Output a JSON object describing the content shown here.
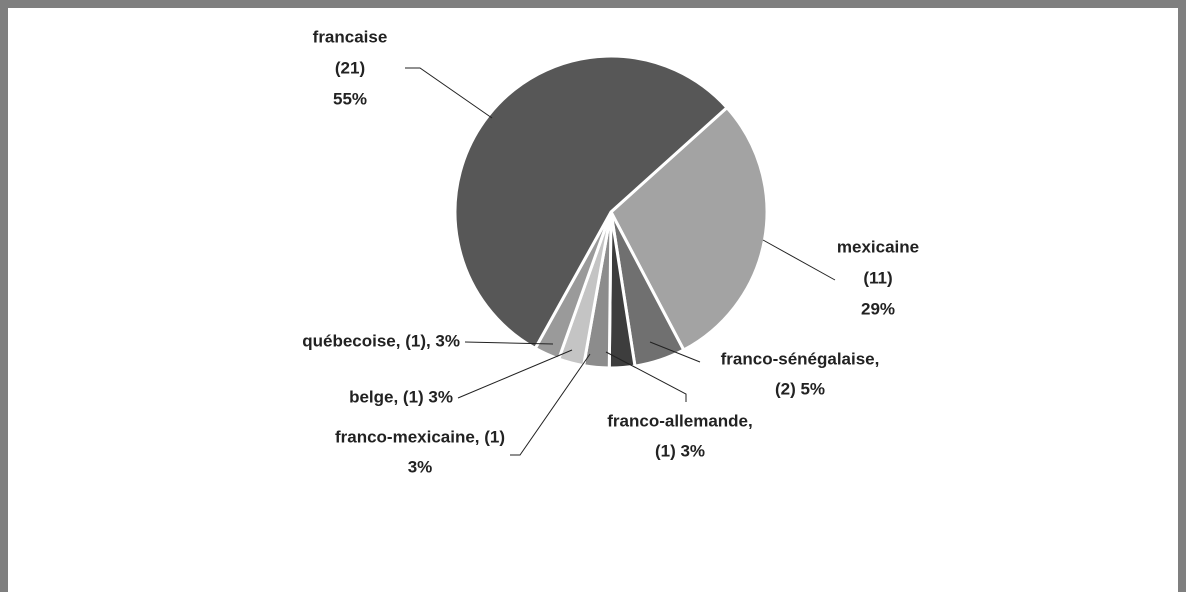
{
  "chart_data": {
    "type": "pie",
    "values": [
      11,
      2,
      1,
      1,
      1,
      1,
      21
    ],
    "value_labels": [
      [
        "mexicaine",
        "(11)",
        "29%"
      ],
      [
        "franco-sénégalaise,",
        "(2) 5%"
      ],
      [
        "franco-allemande,",
        "(1) 3%"
      ],
      [
        "franco-mexicaine, (1)",
        "3%"
      ],
      [
        "belge, (1) 3%"
      ],
      [
        "québecoise, (1), 3%"
      ],
      [
        "francaise",
        "(21)",
        "55%"
      ]
    ],
    "colors": [
      "#a3a3a3",
      "#707070",
      "#3d3d3d",
      "#8c8c8c",
      "#c4c4c4",
      "#9a9a9a",
      "#575757"
    ]
  }
}
